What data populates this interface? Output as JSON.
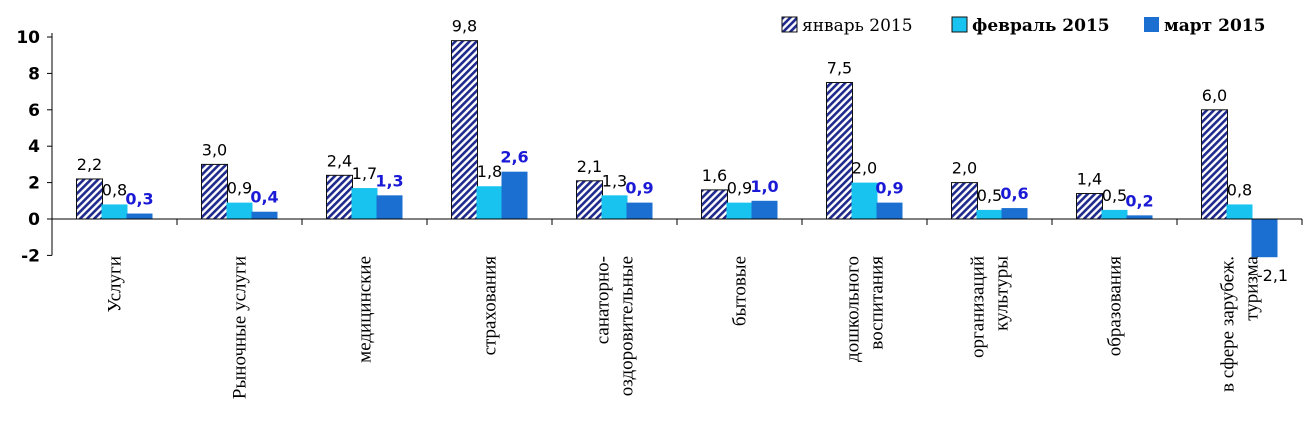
{
  "chart_data": {
    "type": "bar",
    "categories": [
      [
        "Услуги"
      ],
      [
        "Рыночные услуги"
      ],
      [
        "медицинские"
      ],
      [
        "страхования"
      ],
      [
        "санаторно-",
        "оздоровительные"
      ],
      [
        "бытовые"
      ],
      [
        "дошкольного",
        "воспитания"
      ],
      [
        "организаций",
        "культуры"
      ],
      [
        "образования"
      ],
      [
        "в сфере зарубеж.",
        "туризма"
      ]
    ],
    "series": [
      {
        "name": "январь 2015",
        "values": [
          2.2,
          3.0,
          2.4,
          9.8,
          2.1,
          1.6,
          7.5,
          2.0,
          1.4,
          6.0
        ],
        "labels": [
          "2,2",
          "3,0",
          "2,4",
          "9,8",
          "2,1",
          "1,6",
          "7,5",
          "2,0",
          "1,4",
          "6,0"
        ],
        "color": "#1f2a8c",
        "label_color": "#000000"
      },
      {
        "name": "февраль 2015",
        "values": [
          0.8,
          0.9,
          1.7,
          1.8,
          1.3,
          0.9,
          2.0,
          0.5,
          0.5,
          0.8
        ],
        "labels": [
          "0,8",
          "0,9",
          "1,7",
          "1,8",
          "1,3",
          "0,9",
          "2,0",
          "0,5",
          "0,5",
          "0,8"
        ],
        "color": "#19c3f0",
        "label_color": "#000000"
      },
      {
        "name": "март 2015",
        "values": [
          0.3,
          0.4,
          1.3,
          2.6,
          0.9,
          1.0,
          0.9,
          0.6,
          0.2,
          -2.1
        ],
        "labels": [
          "0,3",
          "0,4",
          "1,3",
          "2,6",
          "0,9",
          "1,0",
          "0,9",
          "0,6",
          "0,2",
          "-2,1"
        ],
        "color": "#1a6fd0",
        "label_color": "#1a1ad6"
      }
    ],
    "yticks": [
      "10",
      "8",
      "6",
      "4",
      "2",
      "0",
      "-2"
    ],
    "ylim": [
      -2,
      10
    ],
    "legend_position": "top-right",
    "grid": false
  }
}
